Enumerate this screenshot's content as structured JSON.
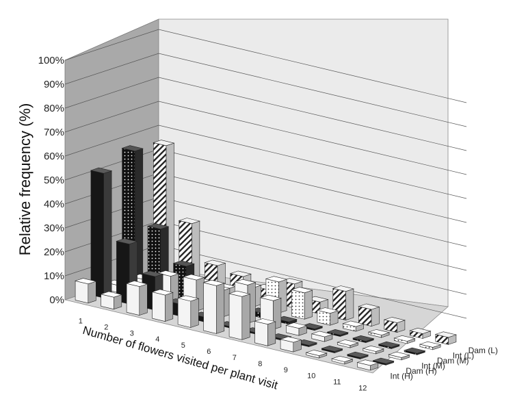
{
  "chart_data": {
    "type": "bar",
    "subtype": "3d-column",
    "ylabel": "Relative frequency (%)",
    "xlabel": "Number of flowers visited per plant visit",
    "ylim": [
      0,
      100
    ],
    "ytick_labels": [
      "0%",
      "10%",
      "20%",
      "30%",
      "40%",
      "50%",
      "60%",
      "70%",
      "80%",
      "90%",
      "100%"
    ],
    "categories": [
      "1",
      "2",
      "3",
      "4",
      "5",
      "6",
      "7",
      "8",
      "9",
      "10",
      "11",
      "12"
    ],
    "series": [
      {
        "name": "Int (H)",
        "pattern": "white",
        "values": [
          8,
          5,
          12,
          11,
          11,
          20,
          18,
          9,
          4,
          1,
          1,
          2
        ]
      },
      {
        "name": "Dam (H)",
        "pattern": "black",
        "values": [
          52,
          25,
          14,
          5,
          2,
          0,
          0,
          0,
          0,
          0,
          0,
          0
        ]
      },
      {
        "name": "Int (M)",
        "pattern": "white",
        "values": [
          3,
          8,
          12,
          13,
          11,
          16,
          12,
          3,
          2,
          1,
          1,
          1
        ]
      },
      {
        "name": "Dam (M)",
        "pattern": "black-dots",
        "values": [
          57,
          27,
          14,
          3,
          1,
          2,
          1,
          0,
          0,
          0,
          0,
          0
        ]
      },
      {
        "name": "Int (L)",
        "pattern": "dots",
        "values": [
          1,
          4,
          5,
          5,
          8,
          13,
          11,
          5,
          2,
          1,
          1,
          1
        ]
      },
      {
        "name": "Dam (L)",
        "pattern": "hatch",
        "values": [
          55,
          25,
          10,
          8,
          5,
          10,
          5,
          12,
          7,
          4,
          2,
          3
        ]
      }
    ],
    "grid": true,
    "legend": "depth-axis-labels"
  }
}
